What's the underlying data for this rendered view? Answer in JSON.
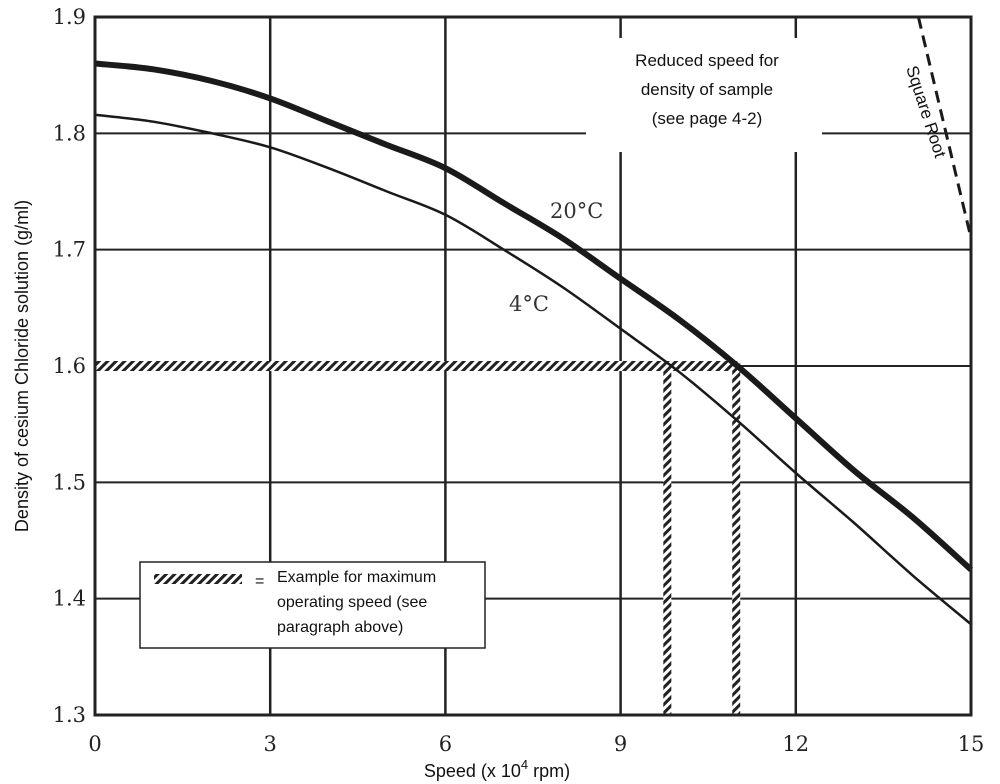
{
  "chart_data": {
    "type": "line",
    "xlabel": "Speed (x 10",
    "xlabel_sup": "4",
    "xlabel_tail": " rpm)",
    "ylabel": "Density of cesium Chloride solution (g/ml)",
    "xlim": [
      0,
      15
    ],
    "ylim": [
      1.3,
      1.9
    ],
    "xticks": [
      "0",
      "3",
      "6",
      "9",
      "12",
      "15"
    ],
    "yticks": [
      "1.3",
      "1.4",
      "1.5",
      "1.6",
      "1.7",
      "1.8",
      "1.9"
    ],
    "grid": true,
    "series": [
      {
        "name": "20°C",
        "style": "thick",
        "x": [
          0,
          1,
          2,
          3,
          4,
          5,
          6,
          7,
          8,
          9,
          10,
          11,
          12,
          13,
          14,
          15
        ],
        "y": [
          1.86,
          1.855,
          1.845,
          1.83,
          1.81,
          1.79,
          1.77,
          1.74,
          1.71,
          1.675,
          1.64,
          1.6,
          1.555,
          1.51,
          1.47,
          1.425
        ]
      },
      {
        "name": "4°C",
        "style": "thin",
        "x": [
          0,
          1,
          2,
          3,
          4,
          5,
          6,
          7,
          8,
          9,
          10,
          11,
          12,
          13,
          14,
          15
        ],
        "y": [
          1.816,
          1.81,
          1.8,
          1.788,
          1.77,
          1.75,
          1.73,
          1.7,
          1.668,
          1.632,
          1.595,
          1.553,
          1.508,
          1.465,
          1.42,
          1.378
        ]
      },
      {
        "name": "Square Root",
        "style": "dashed",
        "x": [
          14.1,
          15
        ],
        "y": [
          1.9,
          1.71
        ]
      }
    ],
    "example": {
      "density": 1.6,
      "speed_4c": 9.8,
      "speed_20c": 10.98
    },
    "annotations": {
      "reduced_speed": [
        "Reduced speed for",
        "density of sample",
        "(see page 4-2)"
      ],
      "square_root": "Square Root"
    },
    "legend": {
      "symbol": "=",
      "lines": [
        "Example for maximum",
        "operating speed (see",
        "paragraph above)"
      ],
      "placement": "bottom-left"
    }
  }
}
